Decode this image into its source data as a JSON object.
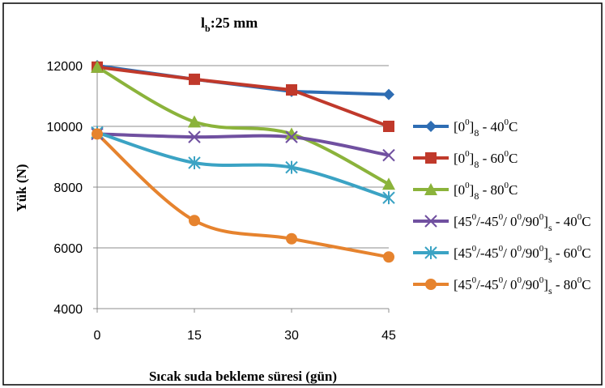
{
  "chart_data": {
    "type": "line",
    "title": "l",
    "title_sub": "b",
    "title_rest": ":25 mm",
    "xlabel": "Sıcak suda bekleme süresi (gün)",
    "ylabel": "Yük  (N)",
    "x": [
      0,
      15,
      30,
      45
    ],
    "xticks": [
      "0",
      "15",
      "30",
      "45"
    ],
    "ylim": [
      4000,
      12000
    ],
    "yticks": [
      4000,
      6000,
      8000,
      10000,
      12000
    ],
    "grid": true,
    "legend_position": "right",
    "series": [
      {
        "name": "[0°]8  - 40°C",
        "legend_text": {
          "a": "[0",
          "sup1": "0",
          "b": "]",
          "sub": "8",
          "c": "  - 40",
          "sup2": "0",
          "d": "C"
        },
        "values": [
          12000,
          11550,
          11150,
          11050
        ],
        "color": "#2e6db3",
        "marker": "diamond",
        "smooth": false
      },
      {
        "name": "[0°]8  - 60°C",
        "legend_text": {
          "a": "[0",
          "sup1": "0",
          "b": "]",
          "sub": "8",
          "c": "  - 60",
          "sup2": "0",
          "d": "C"
        },
        "values": [
          11950,
          11550,
          11200,
          10000
        ],
        "color": "#c0392b",
        "marker": "square",
        "smooth": false
      },
      {
        "name": "[0°]8  - 80°C",
        "legend_text": {
          "a": "[0",
          "sup1": "0",
          "b": "]",
          "sub": "8",
          "c": "  - 80",
          "sup2": "0",
          "d": "C"
        },
        "values": [
          11950,
          10150,
          9750,
          8100
        ],
        "color": "#8bb33b",
        "marker": "triangle",
        "smooth": true
      },
      {
        "name": "[45°/-45°/ 0°/90°]s - 40°C",
        "legend_text": {
          "a": "[45",
          "sup1": "0",
          "b": "/-45",
          "sup1b": "0",
          "b2": "/ 0",
          "sup1c": "0",
          "b3": "/90",
          "sup1d": "0",
          "b4": "]",
          "sub": "s",
          "c": " - 40",
          "sup2": "0",
          "d": "C"
        },
        "values": [
          9750,
          9650,
          9650,
          9050
        ],
        "color": "#7050a0",
        "marker": "x",
        "smooth": true
      },
      {
        "name": "[45°/-45°/ 0°/90°]s - 60°C",
        "legend_text": {
          "a": "[45",
          "sup1": "0",
          "b": "/-45",
          "sup1b": "0",
          "b2": "/ 0",
          "sup1c": "0",
          "b3": "/90",
          "sup1d": "0",
          "b4": "]",
          "sub": "s",
          "c": " - 60",
          "sup2": "0",
          "d": "C"
        },
        "values": [
          9800,
          8800,
          8650,
          7650
        ],
        "color": "#3ba3c4",
        "marker": "star",
        "smooth": true
      },
      {
        "name": "[45°/-45°/ 0°/90°]s - 80°C",
        "legend_text": {
          "a": "[45",
          "sup1": "0",
          "b": "/-45",
          "sup1b": "0",
          "b2": "/ 0",
          "sup1c": "0",
          "b3": "/90",
          "sup1d": "0",
          "b4": "]",
          "sub": "s",
          "c": " - 80",
          "sup2": "0",
          "d": "C"
        },
        "values": [
          9750,
          6900,
          6300,
          5700
        ],
        "color": "#e6832e",
        "marker": "circle",
        "smooth": true
      }
    ]
  }
}
